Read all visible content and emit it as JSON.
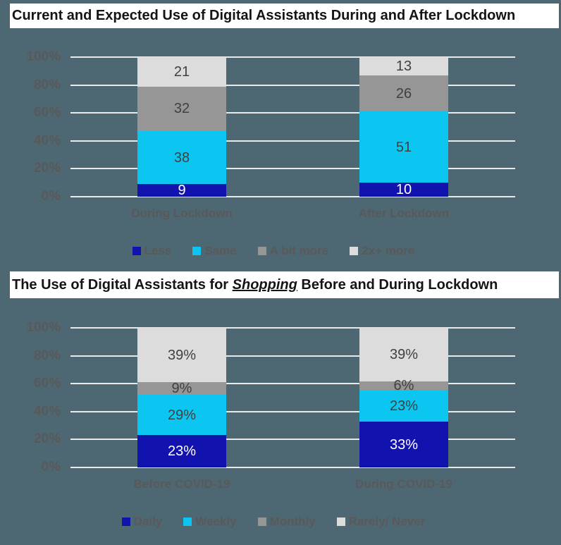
{
  "background_color": "#4D6873",
  "title_band_color": "#FFFFFF",
  "text_colors": {
    "title": "#141414",
    "axis": "#595959",
    "data_label_dark": "#404040",
    "data_label_light": "#FFFFFF"
  },
  "gridline_color": "#E9E9E9",
  "chart_data": [
    {
      "type": "bar",
      "variant": "stacked-100",
      "title_parts": {
        "prefix": "Current and Expected Use of Digital Assistants During and After Lockdown",
        "emphasis": "",
        "suffix": ""
      },
      "categories": [
        "During Lockdown",
        "After Lockdown"
      ],
      "series": [
        {
          "name": "Less",
          "color": "#1212AE",
          "label_color": "#FFFFFF",
          "values": [
            9,
            10
          ]
        },
        {
          "name": "Same",
          "color": "#0BC6F0",
          "label_color": "#404040",
          "values": [
            38,
            51
          ]
        },
        {
          "name": "A bit more",
          "color": "#969696",
          "label_color": "#404040",
          "values": [
            32,
            26
          ]
        },
        {
          "name": "2x+ more",
          "color": "#DCDCDC",
          "label_color": "#404040",
          "values": [
            21,
            13
          ]
        }
      ],
      "value_suffix": "",
      "y_ticks": [
        "0%",
        "20%",
        "40%",
        "60%",
        "80%",
        "100%"
      ],
      "ylim": [
        0,
        100
      ],
      "grid": true,
      "legend_position": "bottom"
    },
    {
      "type": "bar",
      "variant": "stacked-100",
      "title_parts": {
        "prefix": "The Use of Digital Assistants for ",
        "emphasis": "Shopping",
        "suffix": " Before and During Lockdown"
      },
      "categories": [
        "Before COVID-19",
        "During COVID-19"
      ],
      "series": [
        {
          "name": "Daily",
          "color": "#1212AE",
          "label_color": "#FFFFFF",
          "values": [
            23,
            33
          ]
        },
        {
          "name": "Weekly",
          "color": "#0BC6F0",
          "label_color": "#404040",
          "values": [
            29,
            23
          ]
        },
        {
          "name": "Monthly",
          "color": "#969696",
          "label_color": "#404040",
          "values": [
            9,
            6
          ]
        },
        {
          "name": "Rarely/ Never",
          "color": "#DCDCDC",
          "label_color": "#404040",
          "values": [
            39,
            39
          ]
        }
      ],
      "value_suffix": "%",
      "y_ticks": [
        "0%",
        "20%",
        "40%",
        "60%",
        "80%",
        "100%"
      ],
      "ylim": [
        0,
        100
      ],
      "grid": true,
      "legend_position": "bottom"
    }
  ]
}
